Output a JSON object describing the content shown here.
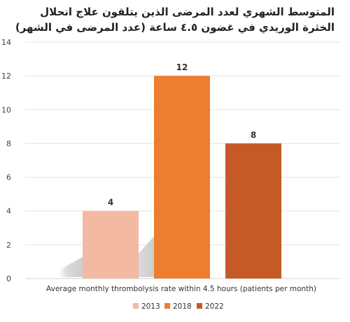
{
  "chart_data": {
    "type": "bar",
    "title_lines": [
      "المتوسط الشهري لعدد المرضى الذين يتلقون علاج انحلال",
      "الخثرة الوريدي في غضون ٤.٥ ساعة (عدد المرضى في الشهر)"
    ],
    "categories": [
      "2013",
      "2018",
      "2022"
    ],
    "values": [
      4,
      12,
      8
    ],
    "data_labels": [
      "4",
      "12",
      "8"
    ],
    "colors": [
      "#f4b9a2",
      "#ed7d31",
      "#c55a27"
    ],
    "xlabel": "Average monthly thrombolysis rate within 4.5 hours (patients per month)",
    "ylabel": "",
    "ylim": [
      0,
      14
    ],
    "yticks": [
      0,
      2,
      4,
      6,
      8,
      10,
      12,
      14
    ],
    "grid": true,
    "legend": {
      "placement": "bottom-center",
      "entries": [
        "2013",
        "2018",
        "2022"
      ]
    }
  }
}
